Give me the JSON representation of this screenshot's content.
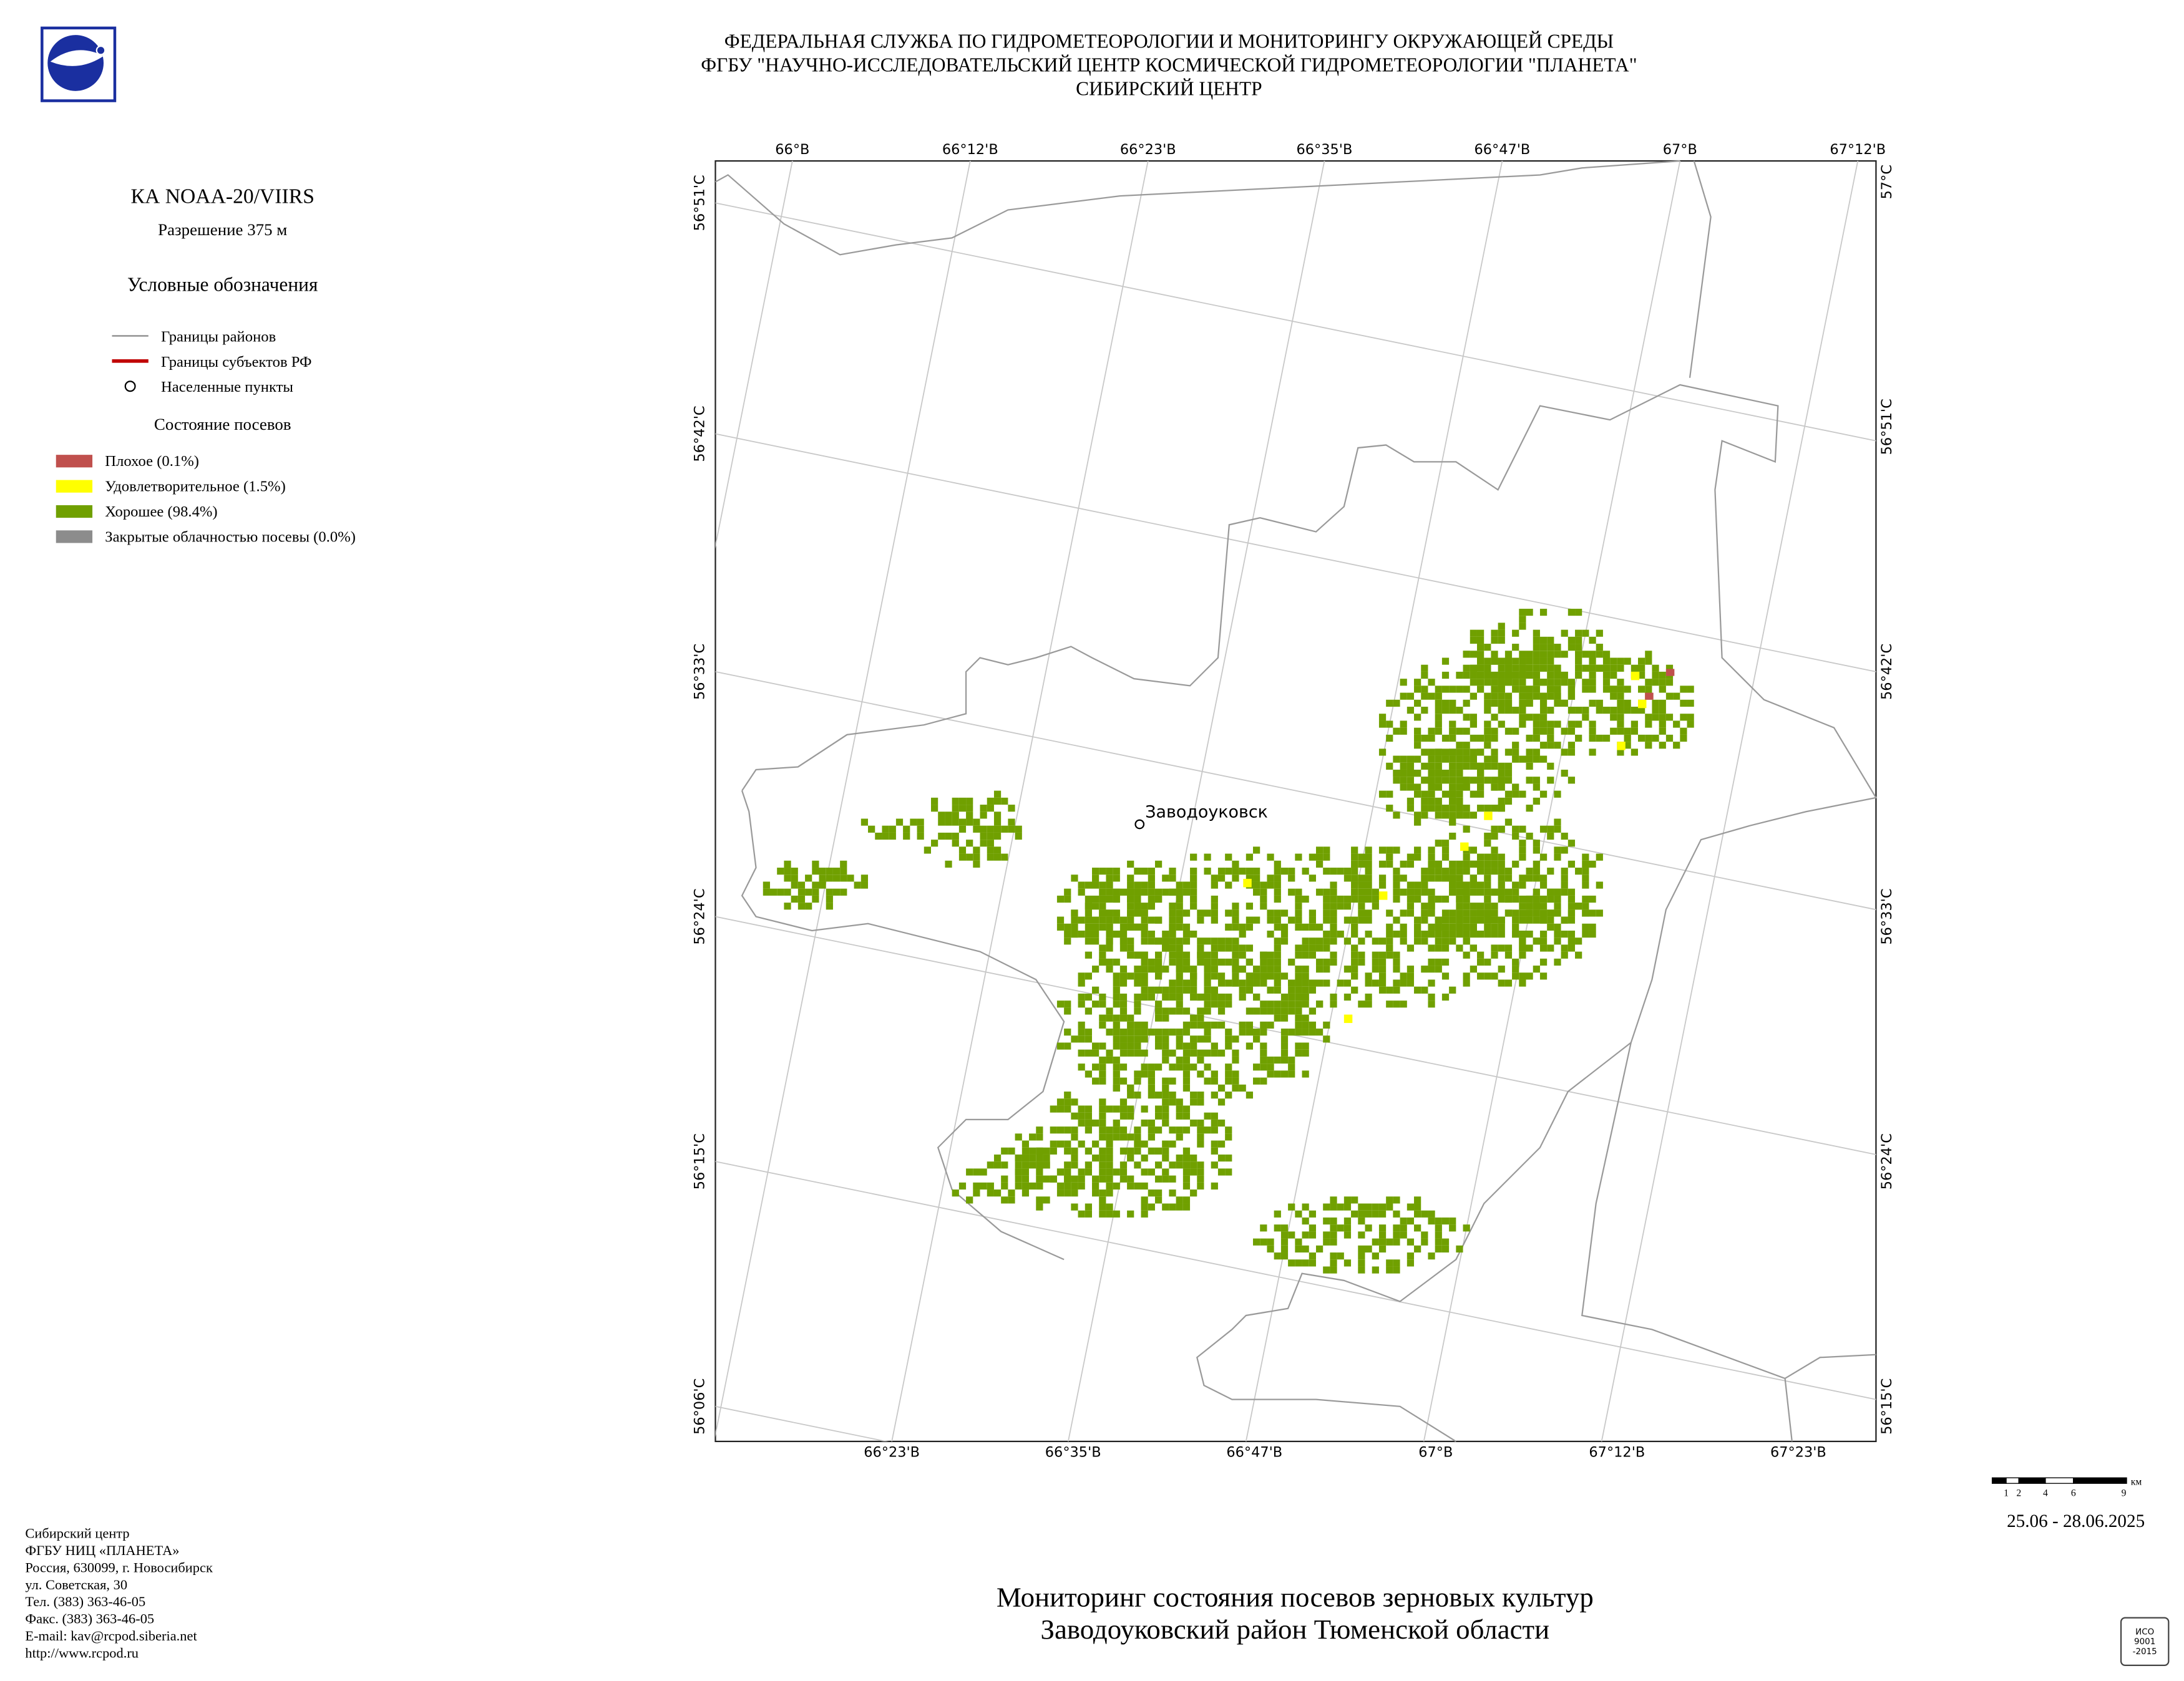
{
  "header": {
    "lines": [
      "ФЕДЕРАЛЬНАЯ СЛУЖБА ПО ГИДРОМЕТЕОРОЛОГИИ И МОНИТОРИНГУ ОКРУЖАЮЩЕЙ СРЕДЫ",
      "ФГБУ \"НАУЧНО-ИССЛЕДОВАТЕЛЬСКИЙ ЦЕНТР КОСМИЧЕСКОЙ ГИДРОМЕТЕОРОЛОГИИ \"ПЛАНЕТА\"",
      "СИБИРСКИЙ ЦЕНТР"
    ]
  },
  "left_panel": {
    "satellite": "КА NOAA-20/VIIRS",
    "resolution": "Разрешение 375 м",
    "legend_title": "Условные обозначения",
    "legend": [
      "Границы районов",
      "Границы субъектов РФ",
      "Населенные пункты"
    ],
    "crop_title": "Состояние посевов",
    "crop_legend": [
      {
        "label": "Плохое (0.1%)",
        "color": "#c0504d"
      },
      {
        "label": "Удовлетворительное (1.5%)",
        "color": "#ffff00"
      },
      {
        "label": "Хорошее (98.4%)",
        "color": "#70a000"
      },
      {
        "label": "Закрытые облачностью посевы (0.0%)",
        "color": "#8c8c8c"
      }
    ]
  },
  "map": {
    "lon_top": [
      "66°В",
      "66°12'В",
      "66°23'В",
      "66°35'В",
      "66°47'В",
      "67°В",
      "67°12'В"
    ],
    "lon_bottom": [
      "66°23'В",
      "66°35'В",
      "66°47'В",
      "67°В",
      "67°12'В",
      "67°23'В"
    ],
    "lat_left": [
      "56°51'С",
      "56°42'С",
      "56°33'С",
      "56°24'С",
      "56°15'С",
      "56°06'С"
    ],
    "lat_right": [
      "57°С",
      "56°51'С",
      "56°42'С",
      "56°33'С",
      "56°24'С",
      "56°15'С"
    ],
    "town": "Заводоуковск"
  },
  "scale": {
    "ticks": [
      "1",
      "2",
      "4",
      "6",
      "9"
    ],
    "unit": "км"
  },
  "date": "25.06 - 28.06.2025",
  "footer": {
    "lines": [
      "Сибирский центр",
      "ФГБУ НИЦ «ПЛАНЕТА»",
      "Россия, 630099, г. Новосибирск",
      "ул. Советская, 30",
      "Тел. (383) 363-46-05",
      "Факс. (383) 363-46-05",
      "E-mail: kav@rcpod.siberia.net",
      "http://www.rcpod.ru"
    ]
  },
  "title": {
    "lines": [
      "Мониторинг состояния посевов зерновых культур",
      "Заводоуковский район Тюменской области"
    ]
  },
  "iso": [
    "ИСО",
    "9001",
    "-2015"
  ]
}
